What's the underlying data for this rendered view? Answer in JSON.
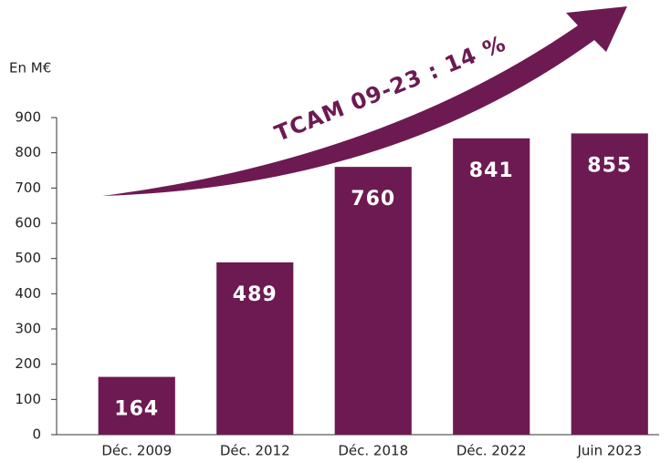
{
  "chart_data": {
    "type": "bar",
    "unit_label": "En M€",
    "annotation": "TCAM 09-23 : 14 %",
    "categories": [
      "Déc. 2009",
      "Déc. 2012",
      "Déc. 2018",
      "Déc. 2022",
      "Juin 2023"
    ],
    "values": [
      164,
      489,
      760,
      841,
      855
    ],
    "color": "#6d1a52",
    "ylim": [
      0,
      900
    ],
    "yticks": [
      0,
      100,
      200,
      300,
      400,
      500,
      600,
      700,
      800,
      900
    ],
    "grid": false
  }
}
